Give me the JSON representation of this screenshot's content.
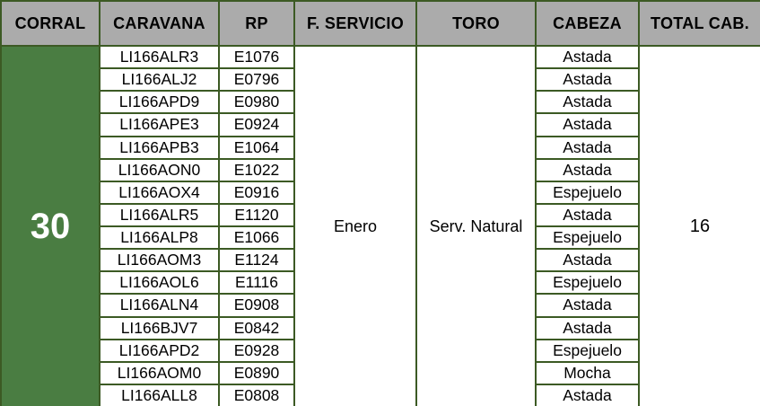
{
  "table": {
    "headers": [
      "CORRAL",
      "CARAVANA",
      "RP",
      "F. SERVICIO",
      "TORO",
      "CABEZA",
      "TOTAL CAB."
    ],
    "corral": "30",
    "f_servicio": "Enero",
    "toro": "Serv. Natural",
    "total_cab": "16",
    "rows": [
      {
        "caravana": "LI166ALR3",
        "rp": "E1076",
        "cabeza": "Astada"
      },
      {
        "caravana": "LI166ALJ2",
        "rp": "E0796",
        "cabeza": "Astada"
      },
      {
        "caravana": "LI166APD9",
        "rp": "E0980",
        "cabeza": "Astada"
      },
      {
        "caravana": "LI166APE3",
        "rp": "E0924",
        "cabeza": "Astada"
      },
      {
        "caravana": "LI166APB3",
        "rp": "E1064",
        "cabeza": "Astada"
      },
      {
        "caravana": "LI166AON0",
        "rp": "E1022",
        "cabeza": "Astada"
      },
      {
        "caravana": "LI166AOX4",
        "rp": "E0916",
        "cabeza": "Espejuelo"
      },
      {
        "caravana": "LI166ALR5",
        "rp": "E1120",
        "cabeza": "Astada"
      },
      {
        "caravana": "LI166ALP8",
        "rp": "E1066",
        "cabeza": "Espejuelo"
      },
      {
        "caravana": "LI166AOM3",
        "rp": "E1124",
        "cabeza": "Astada"
      },
      {
        "caravana": "LI166AOL6",
        "rp": "E1116",
        "cabeza": "Espejuelo"
      },
      {
        "caravana": "LI166ALN4",
        "rp": "E0908",
        "cabeza": "Astada"
      },
      {
        "caravana": "LI166BJV7",
        "rp": "E0842",
        "cabeza": "Astada"
      },
      {
        "caravana": "LI166APD2",
        "rp": "E0928",
        "cabeza": "Espejuelo"
      },
      {
        "caravana": "LI166AOM0",
        "rp": "E0890",
        "cabeza": "Mocha"
      },
      {
        "caravana": "LI166ALL8",
        "rp": "E0808",
        "cabeza": "Astada"
      }
    ]
  },
  "colors": {
    "border_green": "#3c5a24",
    "corral_fill_green": "#4a7d42",
    "header_bg": "#ababab",
    "cell_bg": "#ffffff",
    "header_text": "#000000",
    "data_text": "#000000",
    "corral_text": "#ffffff"
  }
}
